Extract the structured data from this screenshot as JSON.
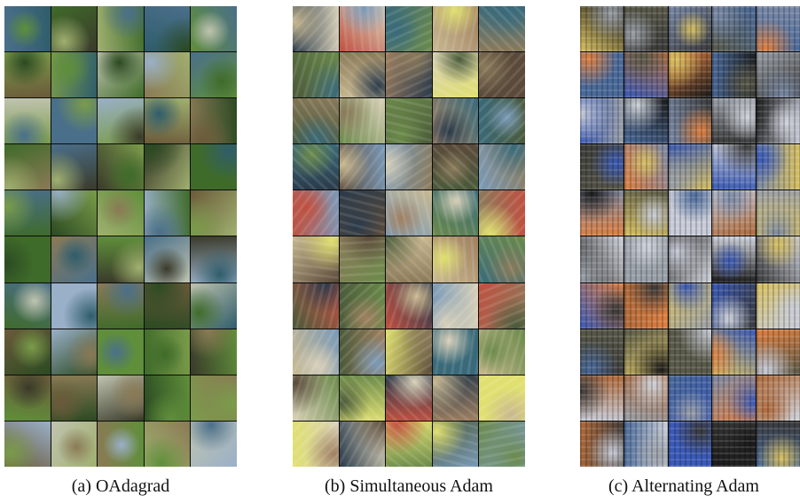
{
  "panels": [
    {
      "id": "a",
      "caption": "(a) OAdagrad",
      "style": "natural"
    },
    {
      "id": "b",
      "caption": "(b) Simultaneous Adam",
      "style": "distorted"
    },
    {
      "id": "c",
      "caption": "(c) Alternating Adam",
      "style": "collapsed"
    }
  ],
  "grid": {
    "rows": 10,
    "cols": 5
  }
}
